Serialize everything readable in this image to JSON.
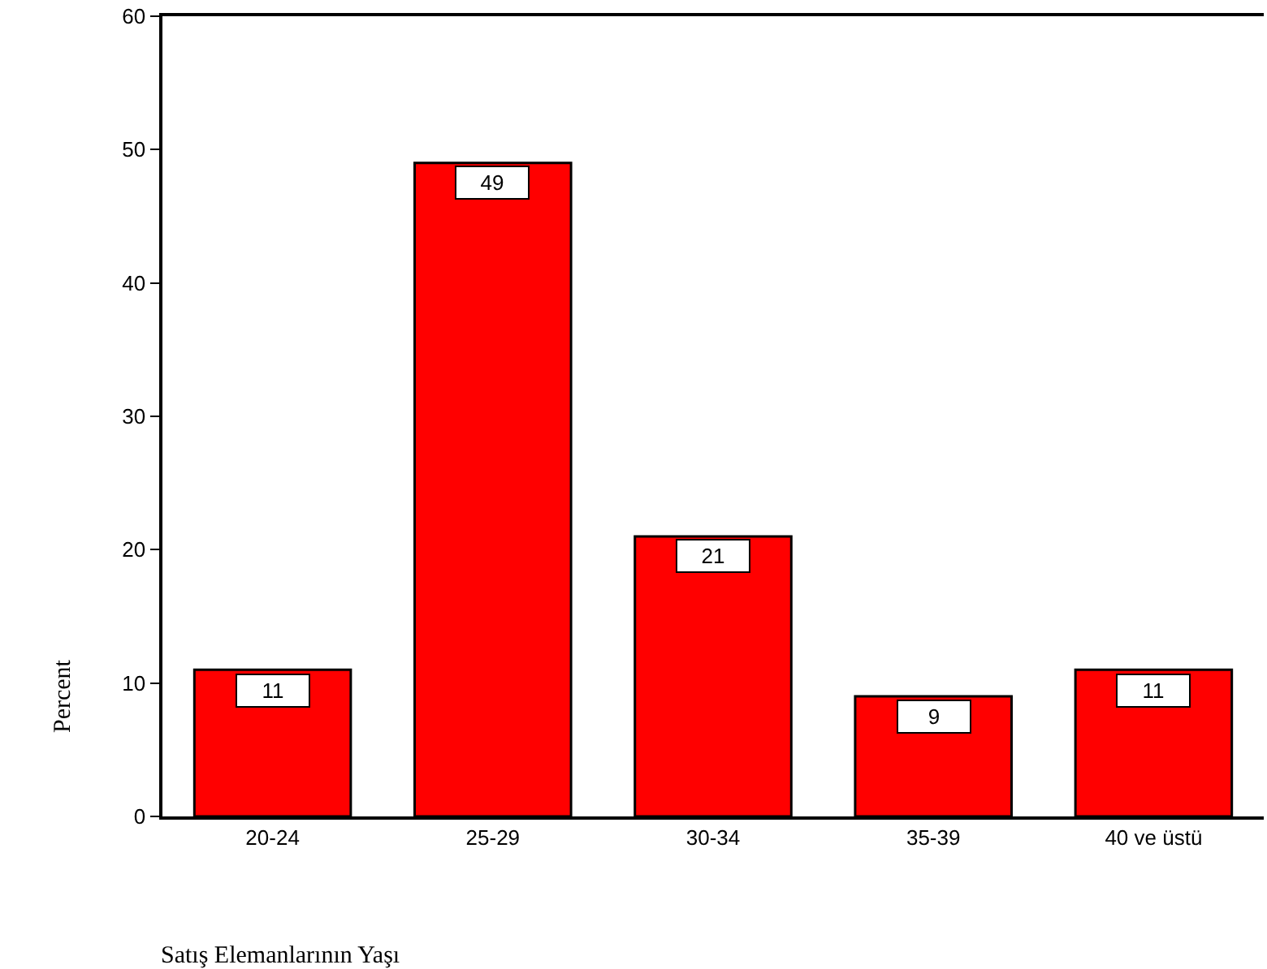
{
  "chart_data": {
    "type": "bar",
    "xlabel": "Satış Elemanlarının Yaşı",
    "ylabel": "Percent",
    "categories": [
      "20-24",
      "25-29",
      "30-34",
      "35-39",
      "40 ve üstü"
    ],
    "values": [
      11,
      49,
      21,
      9,
      11
    ],
    "color": "#ff0000",
    "ylim": [
      0,
      60
    ],
    "yticks": [
      0,
      10,
      20,
      30,
      40,
      50,
      60
    ],
    "data_labels": true
  }
}
